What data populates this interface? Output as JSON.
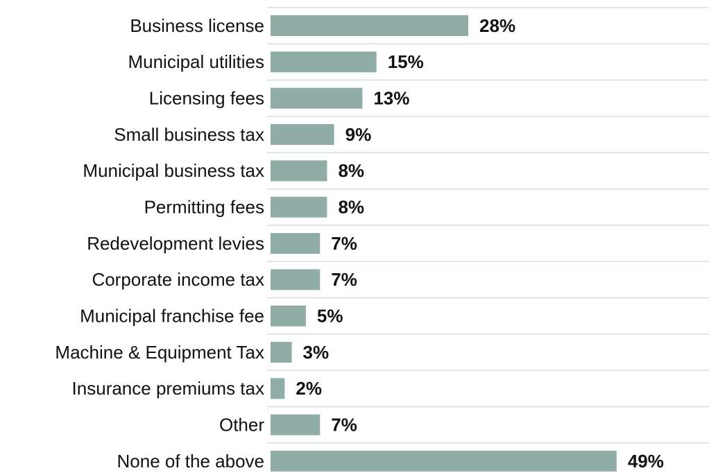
{
  "chart_data": {
    "type": "hbar",
    "categories": [
      "Business license",
      "Municipal utilities",
      "Licensing fees",
      "Small business tax",
      "Municipal business tax",
      "Permitting fees",
      "Redevelopment levies",
      "Corporate income tax",
      "Municipal franchise fee",
      "Machine & Equipment Tax",
      "Insurance premiums tax",
      "Other",
      "None of the above"
    ],
    "values": [
      28,
      15,
      13,
      9,
      8,
      8,
      7,
      7,
      5,
      3,
      2,
      7,
      49
    ],
    "value_labels": [
      "28%",
      "15%",
      "13%",
      "9%",
      "8%",
      "8%",
      "7%",
      "7%",
      "5%",
      "3%",
      "2%",
      "7%",
      "49%"
    ],
    "color": "#8fada6"
  }
}
